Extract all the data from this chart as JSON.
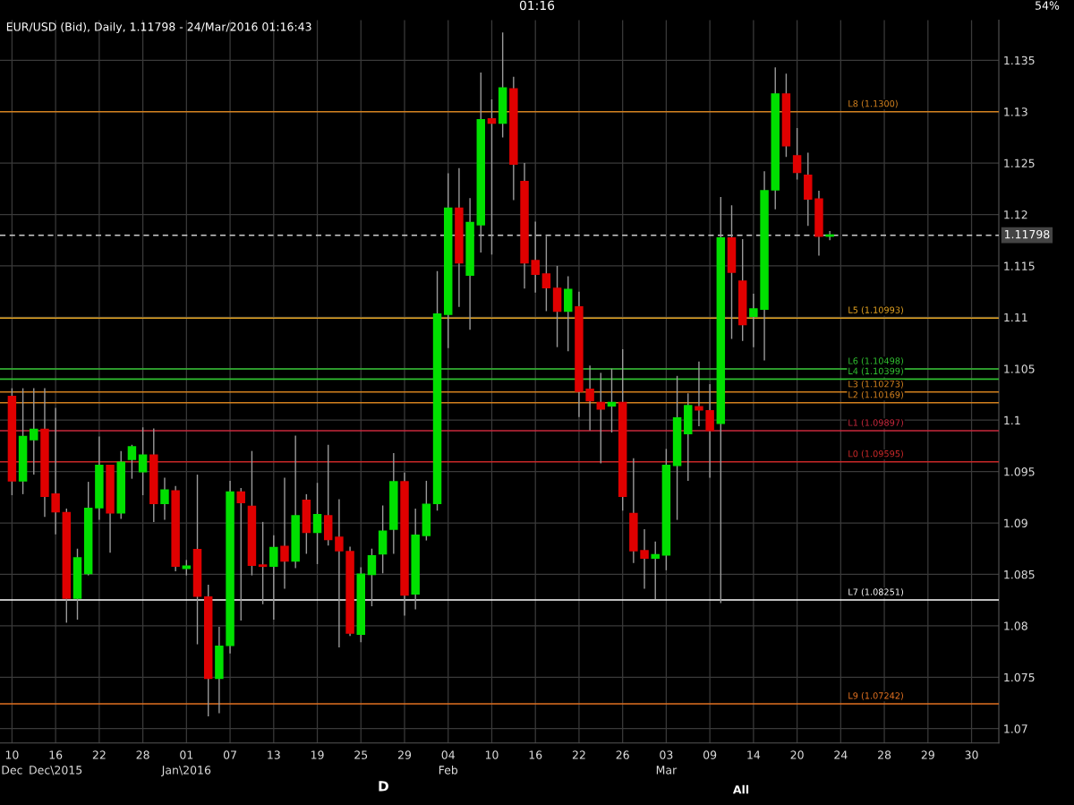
{
  "chart_data": {
    "type": "candlestick",
    "title": "EUR/USD (Bid), Daily, 1.11798 - 24/Mar/2016 01:16:43",
    "annotations": [
      "01:16",
      "54%",
      "D",
      "All"
    ],
    "categories": [
      "10\nDec",
      null,
      null,
      null,
      "16\nDec\\2015",
      null,
      null,
      null,
      "22",
      null,
      null,
      null,
      "28",
      null,
      null,
      null,
      "01\nJan\\2016",
      null,
      null,
      null,
      "07",
      null,
      null,
      null,
      "13",
      null,
      null,
      null,
      "19",
      null,
      null,
      null,
      "25",
      null,
      null,
      null,
      "29",
      null,
      null,
      null,
      "04\nFeb",
      null,
      null,
      null,
      "10",
      null,
      null,
      null,
      "16",
      null,
      null,
      null,
      "22",
      null,
      null,
      null,
      "26",
      null,
      null,
      null,
      "03\nMar",
      null,
      null,
      null,
      "09",
      null,
      null,
      null,
      "14",
      null,
      null,
      null,
      "20",
      null,
      null,
      null,
      "24",
      null,
      null,
      null,
      "28",
      null,
      null,
      null,
      "29",
      null,
      null,
      null,
      "30",
      null,
      null
    ],
    "ohlc": [
      [
        1.1023,
        1.1031,
        1.0927,
        1.0941
      ],
      [
        1.0941,
        1.1031,
        1.0928,
        1.0984
      ],
      [
        1.0981,
        1.1031,
        1.0947,
        1.0991
      ],
      [
        1.0991,
        1.1031,
        1.0906,
        1.0926
      ],
      [
        1.0928,
        1.1012,
        1.0889,
        1.0911
      ],
      [
        1.091,
        1.0914,
        1.0803,
        1.0827
      ],
      [
        1.0827,
        1.0875,
        1.0806,
        1.0866
      ],
      [
        1.0851,
        1.094,
        1.0849,
        1.0914
      ],
      [
        1.0915,
        1.0984,
        1.0903,
        1.0956
      ],
      [
        1.0956,
        1.0956,
        1.0871,
        1.091
      ],
      [
        1.091,
        1.097,
        1.0904,
        1.0959
      ],
      [
        1.0962,
        1.0976,
        1.0943,
        1.0974
      ],
      [
        1.095,
        1.0993,
        1.0927,
        1.0966
      ],
      [
        1.0966,
        1.0992,
        1.0901,
        1.0919
      ],
      [
        1.0919,
        1.0944,
        1.0903,
        1.0932
      ],
      [
        1.0931,
        1.0936,
        1.0853,
        1.0858
      ],
      [
        1.0856,
        1.0864,
        1.0849,
        1.0858
      ],
      [
        1.0874,
        1.0947,
        1.0782,
        1.0829
      ],
      [
        1.0828,
        1.084,
        1.0712,
        1.0749
      ],
      [
        1.0749,
        1.0799,
        1.0715,
        1.078
      ],
      [
        1.0781,
        1.0941,
        1.0773,
        1.093
      ],
      [
        1.093,
        1.0934,
        1.0805,
        1.092
      ],
      [
        1.0916,
        1.097,
        1.0849,
        1.0859
      ],
      [
        1.0859,
        1.0901,
        1.0821,
        1.0858
      ],
      [
        1.0858,
        1.0888,
        1.0806,
        1.0876
      ],
      [
        1.0877,
        1.0944,
        1.0836,
        1.0863
      ],
      [
        1.0863,
        1.0985,
        1.0856,
        1.0907
      ],
      [
        1.0922,
        1.0928,
        1.087,
        1.0891
      ],
      [
        1.0891,
        1.0939,
        1.086,
        1.0908
      ],
      [
        1.0907,
        1.0976,
        1.0878,
        1.0884
      ],
      [
        1.0886,
        1.0923,
        1.0779,
        1.0873
      ],
      [
        1.0872,
        1.0877,
        1.079,
        1.0793
      ],
      [
        1.0792,
        1.0857,
        1.0784,
        1.085
      ],
      [
        1.085,
        1.0875,
        1.0819,
        1.0868
      ],
      [
        1.087,
        1.0917,
        1.0851,
        1.0892
      ],
      [
        1.0894,
        1.0968,
        1.087,
        1.094
      ],
      [
        1.094,
        1.0949,
        1.081,
        1.083
      ],
      [
        1.0831,
        1.0914,
        1.0816,
        1.0888
      ],
      [
        1.0888,
        1.0941,
        1.0883,
        1.0918
      ],
      [
        1.0919,
        1.1145,
        1.0912,
        1.1103
      ],
      [
        1.1103,
        1.124,
        1.107,
        1.1206
      ],
      [
        1.1206,
        1.1245,
        1.111,
        1.1153
      ],
      [
        1.1141,
        1.1216,
        1.1088,
        1.1192
      ],
      [
        1.119,
        1.1338,
        1.1163,
        1.1292
      ],
      [
        1.1293,
        1.1312,
        1.1161,
        1.1289
      ],
      [
        1.1289,
        1.1377,
        1.1275,
        1.1323
      ],
      [
        1.1322,
        1.1334,
        1.1214,
        1.1249
      ],
      [
        1.1232,
        1.125,
        1.1128,
        1.1153
      ],
      [
        1.1155,
        1.1193,
        1.1124,
        1.1142
      ],
      [
        1.1142,
        1.1179,
        1.1106,
        1.1129
      ],
      [
        1.1128,
        1.115,
        1.1071,
        1.1106
      ],
      [
        1.1106,
        1.114,
        1.1067,
        1.1127
      ],
      [
        1.111,
        1.1125,
        1.1003,
        1.1028
      ],
      [
        1.103,
        1.1053,
        1.099,
        1.1019
      ],
      [
        1.1017,
        1.1046,
        1.0958,
        1.1011
      ],
      [
        1.1014,
        1.105,
        1.0988,
        1.1017
      ],
      [
        1.1017,
        1.1069,
        1.0912,
        1.0926
      ],
      [
        1.0909,
        1.0963,
        1.0861,
        1.0873
      ],
      [
        1.0873,
        1.0894,
        1.0836,
        1.0866
      ],
      [
        1.0866,
        1.0882,
        1.0826,
        1.0869
      ],
      [
        1.0869,
        1.0972,
        1.0854,
        1.0956
      ],
      [
        1.0956,
        1.1043,
        1.0903,
        1.1002
      ],
      [
        1.0987,
        1.1026,
        1.0941,
        1.1014
      ],
      [
        1.1013,
        1.1057,
        1.0994,
        1.101
      ],
      [
        1.1009,
        1.1035,
        1.0944,
        1.099
      ],
      [
        1.0997,
        1.1217,
        1.0822,
        1.1177
      ],
      [
        1.1177,
        1.1209,
        1.1079,
        1.1144
      ],
      [
        1.1135,
        1.1176,
        1.1077,
        1.1093
      ],
      [
        1.1101,
        1.1123,
        1.1071,
        1.1108
      ],
      [
        1.1108,
        1.1242,
        1.1058,
        1.1223
      ],
      [
        1.1224,
        1.1343,
        1.1205,
        1.1317
      ],
      [
        1.1317,
        1.1337,
        1.1256,
        1.1267
      ],
      [
        1.1257,
        1.1284,
        1.1234,
        1.1241
      ],
      [
        1.1238,
        1.126,
        1.1189,
        1.1215
      ],
      [
        1.1215,
        1.1223,
        1.116,
        1.1179
      ],
      [
        1.1179,
        1.1184,
        1.1175,
        1.118
      ],
      null,
      null,
      null,
      null,
      null,
      null,
      null,
      null,
      null,
      null,
      null,
      null,
      null,
      null,
      null
    ],
    "colors": [
      "#e00000",
      "#00e000",
      "#00e000",
      "#e00000",
      "#e00000",
      "#e00000",
      "#00e000",
      "#00e000",
      "#00e000",
      "#e00000",
      "#00e000",
      "#00e000",
      "#00e000",
      "#e00000",
      "#00e000",
      "#e00000",
      "#00e000",
      "#e00000",
      "#e00000",
      "#00e000",
      "#00e000",
      "#e00000",
      "#e00000",
      "#e00000",
      "#00e000",
      "#e00000",
      "#00e000",
      "#e00000",
      "#00e000",
      "#e00000",
      "#e00000",
      "#e00000",
      "#00e000",
      "#00e000",
      "#00e000",
      "#00e000",
      "#e00000",
      "#00e000",
      "#00e000",
      "#00e000",
      "#00e000",
      "#e00000",
      "#00e000",
      "#00e000",
      "#e00000",
      "#00e000",
      "#e00000",
      "#e00000",
      "#e00000",
      "#e00000",
      "#e00000",
      "#00e000",
      "#e00000",
      "#e00000",
      "#e00000",
      "#00e000",
      "#e00000",
      "#e00000",
      "#e00000",
      "#00e000",
      "#00e000",
      "#00e000",
      "#00e000",
      "#e00000",
      "#e00000",
      "#00e000",
      "#e00000",
      "#e00000",
      "#00e000",
      "#00e000",
      "#00e000",
      "#e00000",
      "#e00000",
      "#e00000",
      "#e00000",
      "#00e000",
      null,
      null,
      null,
      null,
      null,
      null,
      null,
      null,
      null,
      null,
      null,
      null,
      null,
      null,
      null
    ],
    "ylim": [
      1.0686,
      1.1389
    ],
    "yticks": [
      1.07,
      1.075,
      1.08,
      1.085,
      1.09,
      1.095,
      1.1,
      1.105,
      1.11,
      1.115,
      1.12,
      1.125,
      1.13,
      1.135
    ],
    "grid": true,
    "ref_lines": [
      {
        "axis": "y",
        "value": 1.13,
        "label": "L8 (1.1300)",
        "color": "#d2801e",
        "line_style": "solid"
      },
      {
        "axis": "y",
        "value": 1.10993,
        "label": "L5 (1.10993)",
        "color": "#e0a020",
        "line_style": "solid"
      },
      {
        "axis": "y",
        "value": 1.10498,
        "label": "L6 (1.10498)",
        "color": "#30c030",
        "line_style": "solid"
      },
      {
        "axis": "y",
        "value": 1.10399,
        "label": "L4 (1.10399)",
        "color": "#30c030",
        "line_style": "solid"
      },
      {
        "axis": "y",
        "value": 1.10273,
        "label": "L3 (1.10273)",
        "color": "#d2801e",
        "line_style": "solid"
      },
      {
        "axis": "y",
        "value": 1.10169,
        "label": "L2 (1.10169)",
        "color": "#d2801e",
        "line_style": "solid"
      },
      {
        "axis": "y",
        "value": 1.09897,
        "label": "L1 (1.09897)",
        "color": "#c8283c",
        "line_style": "solid"
      },
      {
        "axis": "y",
        "value": 1.09595,
        "label": "L0 (1.09595)",
        "color": "#c82828",
        "line_style": "solid"
      },
      {
        "axis": "y",
        "value": 1.08251,
        "label": "L7 (1.08251)",
        "color": "#ffffff",
        "line_style": "solid"
      },
      {
        "axis": "y",
        "value": 1.07242,
        "label": "L9 (1.07242)",
        "color": "#e07020",
        "line_style": "solid"
      },
      {
        "axis": "y",
        "value": 1.11798,
        "label": "1.11798",
        "color": "#cccccc",
        "line_style": "dashed"
      }
    ]
  }
}
